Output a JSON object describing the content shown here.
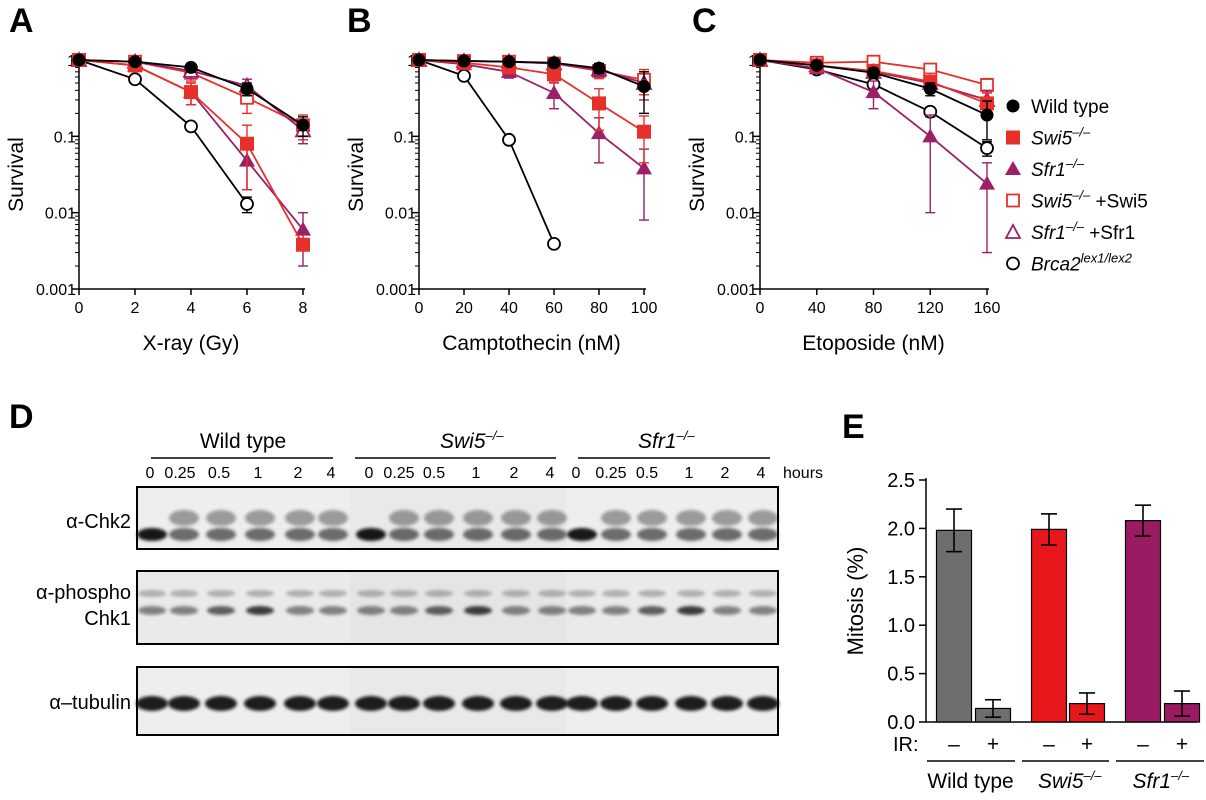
{
  "colors": {
    "wild_type": "#000000",
    "swi5": "#e8302a",
    "sfr1": "#9b2066",
    "swi5_complement": "#e8302a",
    "sfr1_complement": "#9b2066",
    "brca2": "#000000",
    "bar_wt": "#6e6e6e",
    "bar_swi5": "#e8171b",
    "bar_sfr1": "#9b1b63"
  },
  "panel_letters": [
    "A",
    "B",
    "C",
    "D",
    "E"
  ],
  "legend": [
    {
      "name": "Wild type",
      "marker": "filled-circle",
      "key": "wild_type"
    },
    {
      "name": "Swi5–/–",
      "base": "Swi5",
      "sup": "–/–",
      "suffix": "",
      "italic": true,
      "marker": "filled-square",
      "key": "swi5"
    },
    {
      "name": "Sfr1–/–",
      "base": "Sfr1",
      "sup": "–/–",
      "suffix": "",
      "italic": true,
      "marker": "filled-triangle",
      "key": "sfr1"
    },
    {
      "name": "Swi5–/– +Swi5",
      "base": "Swi5",
      "sup": "–/–",
      "suffix": " +Swi5",
      "italic": true,
      "marker": "open-square",
      "key": "swi5_complement"
    },
    {
      "name": "Sfr1–/– +Sfr1",
      "base": "Sfr1",
      "sup": "–/–",
      "suffix": " +Sfr1",
      "italic": true,
      "marker": "open-triangle",
      "key": "sfr1_complement"
    },
    {
      "name": "Brca2lex1/lex2",
      "base": "Brca2",
      "sup": "lex1/lex2",
      "suffix": "",
      "italic": true,
      "marker": "open-circle",
      "key": "brca2"
    }
  ],
  "chart_data": [
    {
      "type": "line",
      "title": "",
      "xlabel": "X-ray (Gy)",
      "ylabel": "Survival",
      "yscale": "log",
      "xlim": [
        0,
        8
      ],
      "ylim": [
        0.001,
        1
      ],
      "xticks": [
        0,
        2,
        4,
        6,
        8
      ],
      "yticks": [
        {
          "v": 0.001,
          "label": "0.001"
        },
        {
          "v": 0.01,
          "label": "0.01"
        },
        {
          "v": 0.1,
          "label": "0.1"
        },
        {
          "v": 1,
          "label": "1"
        }
      ],
      "series": [
        {
          "key": "wild_type",
          "x": [
            0,
            2,
            4,
            6,
            8
          ],
          "y": [
            1,
            0.95,
            0.8,
            0.42,
            0.14
          ],
          "err": [
            0,
            0.05,
            0.1,
            0.08,
            0.04
          ]
        },
        {
          "key": "swi5",
          "x": [
            0,
            2,
            4,
            6,
            8
          ],
          "y": [
            1,
            0.85,
            0.38,
            0.08,
            0.0038
          ],
          "err": [
            0,
            0.08,
            0.12,
            0.06,
            0.0005
          ]
        },
        {
          "key": "sfr1",
          "x": [
            0,
            2,
            4,
            6,
            8
          ],
          "y": [
            1,
            0.85,
            0.38,
            0.048,
            0.006
          ],
          "err": [
            0,
            0.08,
            0.12,
            0.028,
            0.004
          ]
        },
        {
          "key": "swi5_complement",
          "x": [
            0,
            2,
            4,
            6,
            8
          ],
          "y": [
            1,
            0.95,
            0.68,
            0.32,
            0.14
          ],
          "err": [
            0,
            0.05,
            0.15,
            0.12,
            0.05
          ]
        },
        {
          "key": "sfr1_complement",
          "x": [
            0,
            2,
            4,
            6,
            8
          ],
          "y": [
            1,
            0.95,
            0.72,
            0.46,
            0.12
          ],
          "err": [
            0,
            0.05,
            0.15,
            0.1,
            0.04
          ]
        },
        {
          "key": "brca2",
          "x": [
            0,
            2,
            4,
            6
          ],
          "y": [
            1,
            0.56,
            0.135,
            0.013
          ],
          "err": [
            0,
            0.04,
            0.01,
            0.003
          ]
        }
      ]
    },
    {
      "type": "line",
      "title": "",
      "xlabel": "Camptothecin (nM)",
      "ylabel": "Survival",
      "yscale": "log",
      "xlim": [
        0,
        100
      ],
      "ylim": [
        0.001,
        1
      ],
      "xticks": [
        0,
        20,
        40,
        60,
        80,
        100
      ],
      "yticks": [
        {
          "v": 0.001,
          "label": "0.001"
        },
        {
          "v": 0.01,
          "label": "0.01"
        },
        {
          "v": 0.1,
          "label": "0.1"
        },
        {
          "v": 1,
          "label": "1"
        }
      ],
      "series": [
        {
          "key": "wild_type",
          "x": [
            0,
            20,
            40,
            60,
            80,
            100
          ],
          "y": [
            1,
            0.97,
            0.95,
            0.92,
            0.78,
            0.45
          ],
          "err": [
            0,
            0.05,
            0.05,
            0.06,
            0.12,
            0.25
          ]
        },
        {
          "key": "swi5",
          "x": [
            0,
            20,
            40,
            60,
            80,
            100
          ],
          "y": [
            1,
            0.92,
            0.8,
            0.65,
            0.27,
            0.115
          ],
          "err": [
            0,
            0.08,
            0.1,
            0.15,
            0.15,
            0.07
          ]
        },
        {
          "key": "sfr1",
          "x": [
            0,
            20,
            40,
            60,
            80,
            100
          ],
          "y": [
            1,
            0.88,
            0.7,
            0.37,
            0.11,
            0.038
          ],
          "err": [
            0,
            0.08,
            0.12,
            0.14,
            0.065,
            0.03
          ]
        },
        {
          "key": "swi5_complement",
          "x": [
            0,
            20,
            40,
            60,
            80,
            100
          ],
          "y": [
            1,
            0.97,
            0.95,
            0.9,
            0.72,
            0.55
          ],
          "err": [
            0,
            0.05,
            0.05,
            0.08,
            0.15,
            0.2
          ]
        },
        {
          "key": "sfr1_complement",
          "x": [
            0,
            20,
            40,
            60,
            80,
            100
          ],
          "y": [
            1,
            0.97,
            0.95,
            0.9,
            0.75,
            0.5
          ],
          "err": [
            0,
            0.05,
            0.05,
            0.08,
            0.15,
            0.2
          ]
        },
        {
          "key": "brca2",
          "x": [
            0,
            20,
            40,
            60
          ],
          "y": [
            1,
            0.62,
            0.09,
            0.0039
          ],
          "err": [
            0,
            0.03,
            0.005,
            0.0003
          ]
        }
      ]
    },
    {
      "type": "line",
      "title": "",
      "xlabel": "Etoposide (nM)",
      "ylabel": "Survival",
      "yscale": "log",
      "xlim": [
        0,
        160
      ],
      "ylim": [
        0.001,
        1
      ],
      "xticks": [
        0,
        40,
        80,
        120,
        160
      ],
      "yticks": [
        {
          "v": 0.001,
          "label": "0.001"
        },
        {
          "v": 0.01,
          "label": "0.01"
        },
        {
          "v": 0.1,
          "label": "0.1"
        },
        {
          "v": 1,
          "label": "1"
        }
      ],
      "series": [
        {
          "key": "wild_type",
          "x": [
            0,
            40,
            80,
            120,
            160
          ],
          "y": [
            1,
            0.85,
            0.68,
            0.42,
            0.19
          ],
          "err": [
            0,
            0.05,
            0.1,
            0.08,
            0.1
          ]
        },
        {
          "key": "swi5",
          "x": [
            0,
            40,
            80,
            120,
            160
          ],
          "y": [
            1,
            0.85,
            0.72,
            0.52,
            0.27
          ],
          "err": [
            0,
            0.05,
            0.12,
            0.15,
            0.1
          ]
        },
        {
          "key": "sfr1",
          "x": [
            0,
            40,
            80,
            120,
            160
          ],
          "y": [
            1,
            0.78,
            0.38,
            0.1,
            0.024
          ],
          "err": [
            0,
            0.08,
            0.15,
            0.09,
            0.021
          ]
        },
        {
          "key": "swi5_complement",
          "x": [
            0,
            40,
            80,
            120,
            160
          ],
          "y": [
            1,
            0.92,
            0.95,
            0.75,
            0.47
          ],
          "err": [
            0,
            0.05,
            0.05,
            0.1,
            0.1
          ]
        },
        {
          "key": "sfr1_complement",
          "x": [
            0,
            40,
            80,
            120,
            160
          ],
          "y": [
            1,
            0.85,
            0.7,
            0.5,
            0.3
          ],
          "err": [
            0,
            0.05,
            0.1,
            0.1,
            0.1
          ]
        },
        {
          "key": "brca2",
          "x": [
            0,
            40,
            80,
            120,
            160
          ],
          "y": [
            1,
            0.75,
            0.48,
            0.21,
            0.07
          ],
          "err": [
            0,
            0.05,
            0.05,
            0.03,
            0.015
          ]
        }
      ]
    },
    {
      "type": "bar",
      "title": "",
      "ylabel": "Mitosis (%)",
      "xlabel": "",
      "ylim": [
        0,
        2.5
      ],
      "yticks": [
        "0.0",
        "0.5",
        "1.0",
        "1.5",
        "2.0",
        "2.5"
      ],
      "ir_label": "IR:",
      "ir_states": [
        "–",
        "+",
        "–",
        "+",
        "–",
        "+"
      ],
      "groups": [
        {
          "name": "Wild type",
          "italic": false,
          "base": "Wild type",
          "sup": "",
          "values": [
            1.98,
            0.14
          ],
          "errors": [
            0.22,
            0.09
          ],
          "color_key": "bar_wt"
        },
        {
          "name": "Swi5–/–",
          "italic": true,
          "base": "Swi5",
          "sup": "–/–",
          "values": [
            1.99,
            0.19
          ],
          "errors": [
            0.16,
            0.11
          ],
          "color_key": "bar_swi5"
        },
        {
          "name": "Sfr1–/–",
          "italic": true,
          "base": "Sfr1",
          "sup": "–/–",
          "values": [
            2.08,
            0.19
          ],
          "errors": [
            0.16,
            0.13
          ],
          "color_key": "bar_sfr1"
        }
      ]
    }
  ],
  "blot": {
    "groups": [
      {
        "name": "Wild type",
        "italic": false,
        "base": "Wild type",
        "sup": ""
      },
      {
        "name": "Swi5–/–",
        "italic": true,
        "base": "Swi5",
        "sup": "–/–"
      },
      {
        "name": "Sfr1–/–",
        "italic": true,
        "base": "Sfr1",
        "sup": "–/–"
      }
    ],
    "timepoints": [
      "0",
      "0.25",
      "0.5",
      "1",
      "2",
      "4"
    ],
    "time_unit": "hours",
    "rows": [
      {
        "label_lines": [
          "α-Chk2"
        ]
      },
      {
        "label_lines": [
          "α-phospho",
          "Chk1"
        ]
      },
      {
        "label_lines": [
          "α–tubulin"
        ]
      }
    ]
  }
}
